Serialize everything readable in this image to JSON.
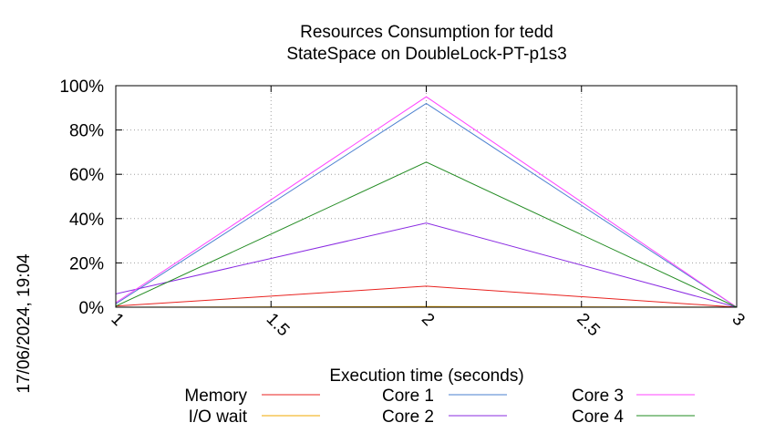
{
  "chart_data": {
    "type": "line",
    "title": "Resources Consumption for tedd",
    "subtitle": "StateSpace on DoubleLock-PT-p1s3",
    "xlabel": "Execution time (seconds)",
    "ylabel": "",
    "timestamp": "17/06/2024, 19:04",
    "xlim": [
      1,
      3
    ],
    "ylim": [
      0,
      100
    ],
    "x_ticks": [
      "1",
      "1.5",
      "2",
      "2.5",
      "3"
    ],
    "y_ticks": [
      "0%",
      "20%",
      "40%",
      "60%",
      "80%",
      "100%"
    ],
    "grid": true,
    "legend_position": "bottom",
    "x": [
      1,
      2,
      3
    ],
    "series": [
      {
        "name": "Memory",
        "color": "#e8221f",
        "values": [
          0.5,
          9.5,
          0
        ]
      },
      {
        "name": "I/O wait",
        "color": "#f0a800",
        "values": [
          0,
          0.3,
          0
        ]
      },
      {
        "name": "Core 1",
        "color": "#4a7fcf",
        "values": [
          1.5,
          92,
          0
        ]
      },
      {
        "name": "Core 2",
        "color": "#8a2be2",
        "values": [
          6,
          38,
          0
        ]
      },
      {
        "name": "Core 3",
        "color": "#ff44ff",
        "values": [
          2,
          95,
          0
        ]
      },
      {
        "name": "Core 4",
        "color": "#228b22",
        "values": [
          0.5,
          65.5,
          0
        ]
      }
    ]
  }
}
